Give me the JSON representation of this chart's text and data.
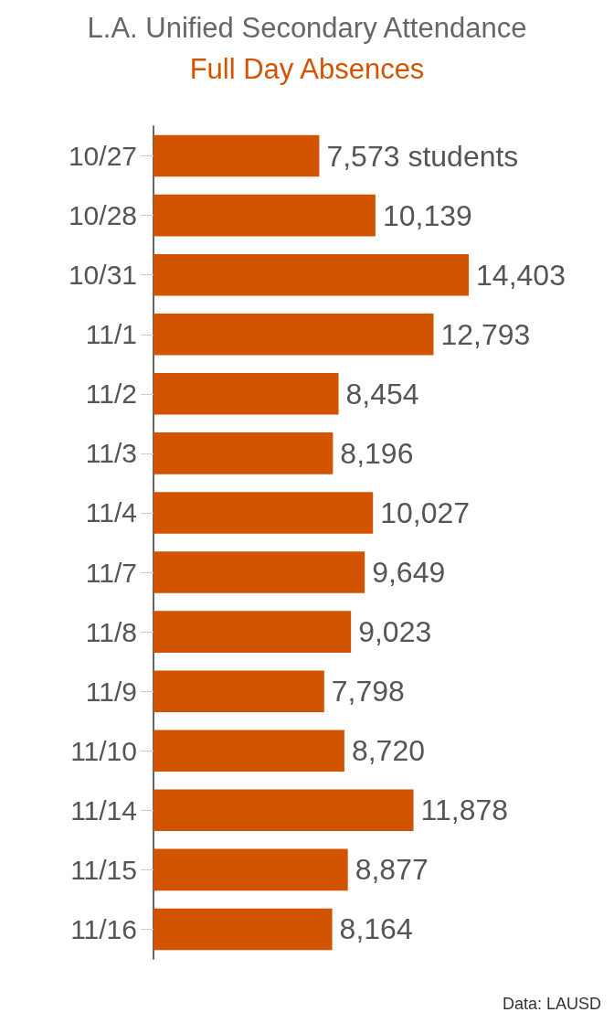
{
  "chart_data": {
    "type": "bar",
    "orientation": "horizontal",
    "title": "L.A. Unified Secondary Attendance",
    "subtitle": "Full Day Absences",
    "categories": [
      "10/27",
      "10/28",
      "10/31",
      "11/1",
      "11/2",
      "11/3",
      "11/4",
      "11/7",
      "11/8",
      "11/9",
      "11/10",
      "11/14",
      "11/15",
      "11/16"
    ],
    "values": [
      7573,
      10139,
      14403,
      12793,
      8454,
      8196,
      10027,
      9649,
      9023,
      7798,
      8720,
      11878,
      8877,
      8164
    ],
    "value_labels": [
      "7,573 students",
      "10,139",
      "14,403",
      "12,793",
      "8,454",
      "8,196",
      "10,027",
      "9,649",
      "9,023",
      "7,798",
      "8,720",
      "11,878",
      "8,877",
      "8,164"
    ],
    "color": "#d35400",
    "grid": false,
    "annotations": [
      "Data: LAUSD"
    ]
  }
}
